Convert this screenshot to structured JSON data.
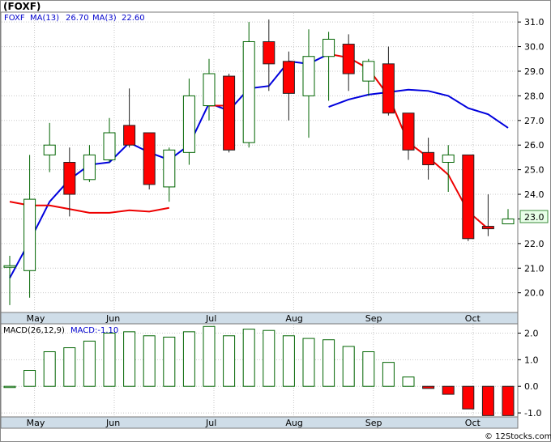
{
  "title": "(FOXF)",
  "footer": "© 12Stocks.com",
  "price_panel": {
    "symbol": "FOXF",
    "ma13_label": "MA(13)",
    "ma13_value": "26.70",
    "ma3_label": "MA(3)",
    "ma3_value": "22.60",
    "last_price_tag": "23.0"
  },
  "macd_panel": {
    "label": "MACD(26,12,9)",
    "value_label": "MACD:-1.10"
  },
  "colors": {
    "up": "#ffffff",
    "up_border": "#006400",
    "down": "#ff0000",
    "ma13": "#0000dd",
    "ma3": "#ee0000",
    "axis_bg": "#cfdde8",
    "grid": "#c8c8c8",
    "tag_bg": "#e8ffe8"
  },
  "chart_data": [
    {
      "type": "candlestick",
      "y_ticks": [
        "20.0",
        "21.0",
        "22.0",
        "23.0",
        "24.0",
        "25.0",
        "26.0",
        "27.0",
        "28.0",
        "29.0",
        "30.0",
        "31.0"
      ],
      "ylim": [
        19.2,
        31.4
      ],
      "month_labels": [
        {
          "label": "May",
          "index": 1
        },
        {
          "label": "Jun",
          "index": 5
        },
        {
          "label": "Jul",
          "index": 10
        },
        {
          "label": "Aug",
          "index": 14
        },
        {
          "label": "Sep",
          "index": 18
        },
        {
          "label": "Oct",
          "index": 23
        }
      ],
      "candles": [
        {
          "o": 21.05,
          "h": 21.5,
          "l": 19.5,
          "c": 21.1
        },
        {
          "o": 20.9,
          "h": 25.6,
          "l": 19.8,
          "c": 23.8
        },
        {
          "o": 25.6,
          "h": 26.9,
          "l": 24.9,
          "c": 26.0
        },
        {
          "o": 25.3,
          "h": 25.9,
          "l": 23.1,
          "c": 24.0
        },
        {
          "o": 24.6,
          "h": 26.0,
          "l": 24.5,
          "c": 25.6
        },
        {
          "o": 25.4,
          "h": 27.1,
          "l": 25.3,
          "c": 26.5
        },
        {
          "o": 26.8,
          "h": 28.3,
          "l": 25.9,
          "c": 26.0
        },
        {
          "o": 26.5,
          "h": 26.5,
          "l": 24.2,
          "c": 24.4
        },
        {
          "o": 24.3,
          "h": 25.9,
          "l": 23.7,
          "c": 25.8
        },
        {
          "o": 25.7,
          "h": 28.7,
          "l": 25.2,
          "c": 28.0
        },
        {
          "o": 27.6,
          "h": 29.5,
          "l": 27.0,
          "c": 28.9
        },
        {
          "o": 28.8,
          "h": 28.9,
          "l": 25.7,
          "c": 25.8
        },
        {
          "o": 26.1,
          "h": 31.0,
          "l": 25.9,
          "c": 30.2
        },
        {
          "o": 30.2,
          "h": 31.1,
          "l": 28.2,
          "c": 29.3
        },
        {
          "o": 29.4,
          "h": 29.8,
          "l": 27.0,
          "c": 28.1
        },
        {
          "o": 28.0,
          "h": 30.7,
          "l": 26.3,
          "c": 29.6
        },
        {
          "o": 29.6,
          "h": 30.6,
          "l": 27.8,
          "c": 30.3
        },
        {
          "o": 30.1,
          "h": 30.5,
          "l": 28.2,
          "c": 28.9
        },
        {
          "o": 28.6,
          "h": 29.5,
          "l": 28.0,
          "c": 29.4
        },
        {
          "o": 29.3,
          "h": 30.0,
          "l": 27.2,
          "c": 27.3
        },
        {
          "o": 27.3,
          "h": 27.3,
          "l": 25.4,
          "c": 25.8
        },
        {
          "o": 25.7,
          "h": 26.3,
          "l": 24.6,
          "c": 25.2
        },
        {
          "o": 25.3,
          "h": 26.0,
          "l": 24.1,
          "c": 25.6
        },
        {
          "o": 25.6,
          "h": 25.6,
          "l": 22.1,
          "c": 22.2
        },
        {
          "o": 22.7,
          "h": 24.0,
          "l": 22.3,
          "c": 22.6
        },
        {
          "o": 22.8,
          "h": 23.4,
          "l": 22.8,
          "c": 23.0
        }
      ],
      "ma13": [
        {
          "i": 0,
          "v": 20.6
        },
        {
          "i": 1,
          "v": 22.1
        },
        {
          "i": 2,
          "v": 23.7
        },
        {
          "i": 3,
          "v": 24.6
        },
        {
          "i": 4,
          "v": 25.2
        },
        {
          "i": 5,
          "v": 25.3
        },
        {
          "i": 6,
          "v": 26.1
        },
        {
          "i": 7,
          "v": 25.7
        },
        {
          "i": 8,
          "v": 25.4
        },
        {
          "i": 9,
          "v": 26.0
        },
        {
          "i": 10,
          "v": 27.7
        },
        {
          "i": 11,
          "v": 27.4
        },
        {
          "i": 12,
          "v": 28.3
        },
        {
          "i": 13,
          "v": 28.4
        },
        {
          "i": 14,
          "v": 29.4
        },
        {
          "i": 15,
          "v": 29.3
        },
        {
          "i": 16,
          "v": 29.7
        }
      ],
      "ma3": [
        {
          "i": 0,
          "v": 23.7
        },
        {
          "i": 1,
          "v": 23.55
        },
        {
          "i": 2,
          "v": 23.55
        },
        {
          "i": 3,
          "v": 23.4
        },
        {
          "i": 4,
          "v": 23.25
        },
        {
          "i": 5,
          "v": 23.25
        },
        {
          "i": 6,
          "v": 23.35
        },
        {
          "i": 7,
          "v": 23.3
        },
        {
          "i": 8,
          "v": 23.45
        },
        {
          "i": 9,
          "v": 23.95
        },
        {
          "i": 10,
          "v": 24.65
        },
        {
          "i": 11,
          "v": 25.15
        },
        {
          "i": 12,
          "v": 25.85
        },
        {
          "i": 13,
          "v": 26.45
        },
        {
          "i": 14,
          "v": 26.8
        },
        {
          "i": 15,
          "v": 27.05
        },
        {
          "i": 16,
          "v": 27.55
        },
        {
          "i": 17,
          "v": 27.85
        },
        {
          "i": 18,
          "v": 28.05
        },
        {
          "i": 19,
          "v": 28.15
        },
        {
          "i": 20,
          "v": 28.25
        },
        {
          "i": 21,
          "v": 28.2
        },
        {
          "i": 22,
          "v": 28.0
        },
        {
          "i": 23,
          "v": 27.5
        },
        {
          "i": 24,
          "v": 27.25
        },
        {
          "i": 25,
          "v": 26.7
        }
      ],
      "ma_extra_red": [
        {
          "i": 10,
          "v": 27.6
        },
        {
          "i": 11,
          "v": 27.6
        }
      ],
      "ma3_tail": [
        {
          "i": 16,
          "v": 29.7
        },
        {
          "i": 17,
          "v": 29.55
        },
        {
          "i": 18,
          "v": 29.1
        },
        {
          "i": 19,
          "v": 28.0
        },
        {
          "i": 20,
          "v": 26.1
        },
        {
          "i": 21,
          "v": 25.5
        },
        {
          "i": 22,
          "v": 24.8
        },
        {
          "i": 23,
          "v": 23.3
        },
        {
          "i": 24,
          "v": 22.6
        }
      ]
    },
    {
      "type": "bar",
      "name": "MACD(26,12,9)",
      "y_ticks": [
        "2.0",
        "1.0",
        "0.0",
        "-1.0"
      ],
      "ylim": [
        -1.15,
        2.35
      ],
      "values": [
        0.0,
        0.6,
        1.3,
        1.45,
        1.7,
        2.0,
        2.05,
        1.9,
        1.85,
        2.05,
        2.25,
        1.9,
        2.15,
        2.1,
        1.9,
        1.8,
        1.75,
        1.5,
        1.3,
        0.9,
        0.35,
        -0.08,
        -0.3,
        -0.85,
        -1.1,
        -1.1
      ]
    }
  ]
}
